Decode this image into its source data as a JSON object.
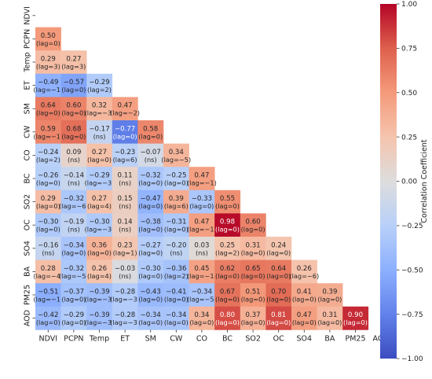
{
  "chart_data": {
    "type": "heatmap",
    "title": "",
    "variables": [
      "NDVI",
      "PCPN",
      "Temp",
      "ET",
      "SM",
      "CW",
      "CO",
      "BC",
      "SO2",
      "OC",
      "SO4",
      "BA",
      "PM25",
      "AOD"
    ],
    "colorbar": {
      "label": "Correlation Coefficient",
      "range": [
        -1.0,
        1.0
      ],
      "ticks": [
        "1.00",
        "0.75",
        "0.50",
        "0.25",
        "0.00",
        "−0.25",
        "−0.50",
        "−0.75",
        "−1.00"
      ],
      "colormap": "coolwarm",
      "low_color": "#3b4cc0",
      "mid_color": "#dddddd",
      "high_color": "#b40426"
    },
    "mask": "upper-triangle-and-diagonal",
    "rows": [
      {
        "label": "NDVI",
        "cells": []
      },
      {
        "label": "PCPN",
        "cells": [
          {
            "v": 0.5,
            "r": "0.50",
            "lag": "(lag=0)"
          }
        ]
      },
      {
        "label": "Temp",
        "cells": [
          {
            "v": 0.29,
            "r": "0.29",
            "lag": "(lag=3)"
          },
          {
            "v": 0.27,
            "r": "0.27",
            "lag": "(lag=3)"
          }
        ]
      },
      {
        "label": "ET",
        "cells": [
          {
            "v": -0.49,
            "r": "−0.49",
            "lag": "(lag=−1)"
          },
          {
            "v": -0.57,
            "r": "−0.57",
            "lag": "(lag=0)"
          },
          {
            "v": -0.29,
            "r": "−0.29",
            "lag": "(lag=2)"
          }
        ]
      },
      {
        "label": "SM",
        "cells": [
          {
            "v": 0.64,
            "r": "0.64",
            "lag": "(lag=0)"
          },
          {
            "v": 0.6,
            "r": "0.60",
            "lag": "(lag=0)"
          },
          {
            "v": 0.32,
            "r": "0.32",
            "lag": "(lag=−3)"
          },
          {
            "v": 0.47,
            "r": "0.47",
            "lag": "(lag=−2)"
          }
        ]
      },
      {
        "label": "CW",
        "cells": [
          {
            "v": 0.59,
            "r": "0.59",
            "lag": "(lag=−1)"
          },
          {
            "v": 0.68,
            "r": "0.68",
            "lag": "(lag=0)"
          },
          {
            "v": -0.17,
            "r": "−0.17",
            "lag": "(ns)"
          },
          {
            "v": -0.77,
            "r": "−0.77",
            "lag": "(lag=0)"
          },
          {
            "v": 0.58,
            "r": "0.58",
            "lag": "(lag=0)"
          }
        ]
      },
      {
        "label": "CO",
        "cells": [
          {
            "v": -0.24,
            "r": "−0.24",
            "lag": "(lag=2)"
          },
          {
            "v": 0.09,
            "r": "0.09",
            "lag": "(ns)"
          },
          {
            "v": 0.27,
            "r": "0.27",
            "lag": "(lag=0)"
          },
          {
            "v": -0.23,
            "r": "−0.23",
            "lag": "(lag=6)"
          },
          {
            "v": -0.07,
            "r": "−0.07",
            "lag": "(ns)"
          },
          {
            "v": 0.34,
            "r": "0.34",
            "lag": "(lag=−5)"
          }
        ]
      },
      {
        "label": "BC",
        "cells": [
          {
            "v": -0.26,
            "r": "−0.26",
            "lag": "(lag=0)"
          },
          {
            "v": -0.14,
            "r": "−0.14",
            "lag": "(ns)"
          },
          {
            "v": -0.29,
            "r": "−0.29",
            "lag": "(lag=−3)"
          },
          {
            "v": 0.11,
            "r": "0.11",
            "lag": "(ns)"
          },
          {
            "v": -0.32,
            "r": "−0.32",
            "lag": "(lag=0)"
          },
          {
            "v": -0.25,
            "r": "−0.25",
            "lag": "(lag=0)"
          },
          {
            "v": 0.47,
            "r": "0.47",
            "lag": "(lag=−1)"
          }
        ]
      },
      {
        "label": "SO2",
        "cells": [
          {
            "v": 0.29,
            "r": "0.29",
            "lag": "(lag=0)"
          },
          {
            "v": -0.32,
            "r": "−0.32",
            "lag": "(lag=−6)"
          },
          {
            "v": 0.27,
            "r": "0.27",
            "lag": "(lag=4)"
          },
          {
            "v": 0.15,
            "r": "0.15",
            "lag": "(ns)"
          },
          {
            "v": -0.47,
            "r": "−0.47",
            "lag": "(lag=0)"
          },
          {
            "v": 0.39,
            "r": "0.39",
            "lag": "(lag=6)"
          },
          {
            "v": -0.33,
            "r": "−0.33",
            "lag": "(lag=0)"
          },
          {
            "v": 0.55,
            "r": "0.55",
            "lag": "(lag=0)"
          }
        ]
      },
      {
        "label": "OC",
        "cells": [
          {
            "v": -0.3,
            "r": "−0.30",
            "lag": "(lag=0)"
          },
          {
            "v": -0.19,
            "r": "−0.19",
            "lag": "(ns)"
          },
          {
            "v": -0.3,
            "r": "−0.30",
            "lag": "(lag=−3)"
          },
          {
            "v": 0.14,
            "r": "0.14",
            "lag": "(ns)"
          },
          {
            "v": -0.38,
            "r": "−0.38",
            "lag": "(lag=0)"
          },
          {
            "v": -0.31,
            "r": "−0.31",
            "lag": "(lag=0)"
          },
          {
            "v": 0.47,
            "r": "0.47",
            "lag": "(lag=−1)"
          },
          {
            "v": 0.98,
            "r": "0.98",
            "lag": "(lag=0)"
          },
          {
            "v": 0.6,
            "r": "0.60",
            "lag": "(lag=0)"
          }
        ]
      },
      {
        "label": "SO4",
        "cells": [
          {
            "v": -0.16,
            "r": "−0.16",
            "lag": "(ns)"
          },
          {
            "v": -0.34,
            "r": "−0.34",
            "lag": "(lag=0)"
          },
          {
            "v": 0.36,
            "r": "0.36",
            "lag": "(lag=0)"
          },
          {
            "v": 0.23,
            "r": "0.23",
            "lag": "(lag=1)"
          },
          {
            "v": -0.27,
            "r": "−0.27",
            "lag": "(lag=0)"
          },
          {
            "v": -0.2,
            "r": "−0.20",
            "lag": "(ns)"
          },
          {
            "v": 0.03,
            "r": "0.03",
            "lag": "(ns)"
          },
          {
            "v": 0.25,
            "r": "0.25",
            "lag": "(lag=2)"
          },
          {
            "v": 0.31,
            "r": "0.31",
            "lag": "(lag=0)"
          },
          {
            "v": 0.24,
            "r": "0.24",
            "lag": "(lag=0)"
          }
        ]
      },
      {
        "label": "BA",
        "cells": [
          {
            "v": 0.28,
            "r": "0.28",
            "lag": "(lag=−4)"
          },
          {
            "v": -0.32,
            "r": "−0.32",
            "lag": "(lag=−5)"
          },
          {
            "v": 0.26,
            "r": "0.26",
            "lag": "(lag=4)"
          },
          {
            "v": -0.03,
            "r": "−0.03",
            "lag": "(ns)"
          },
          {
            "v": -0.3,
            "r": "−0.30",
            "lag": "(lag=0)"
          },
          {
            "v": -0.36,
            "r": "−0.36",
            "lag": "(lag=2)"
          },
          {
            "v": 0.45,
            "r": "0.45",
            "lag": "(lag=−1)"
          },
          {
            "v": 0.62,
            "r": "0.62",
            "lag": "(lag=0)"
          },
          {
            "v": 0.65,
            "r": "0.65",
            "lag": "(lag=0)"
          },
          {
            "v": 0.64,
            "r": "0.64",
            "lag": "(lag=0)"
          },
          {
            "v": 0.26,
            "r": "0.26",
            "lag": "(lag=−6)"
          }
        ]
      },
      {
        "label": "PM25",
        "cells": [
          {
            "v": -0.51,
            "r": "−0.51",
            "lag": "(lag=−1)"
          },
          {
            "v": -0.37,
            "r": "−0.37",
            "lag": "(lag=0)"
          },
          {
            "v": -0.39,
            "r": "−0.39",
            "lag": "(lag=−3)"
          },
          {
            "v": -0.28,
            "r": "−0.28",
            "lag": "(lag=−3)"
          },
          {
            "v": -0.43,
            "r": "−0.43",
            "lag": "(lag=0)"
          },
          {
            "v": -0.41,
            "r": "−0.41",
            "lag": "(lag=0)"
          },
          {
            "v": -0.34,
            "r": "−0.34",
            "lag": "(lag=−5)"
          },
          {
            "v": 0.67,
            "r": "0.67",
            "lag": "(lag=0)"
          },
          {
            "v": 0.51,
            "r": "0.51",
            "lag": "(lag=0)"
          },
          {
            "v": 0.7,
            "r": "0.70",
            "lag": "(lag=0)"
          },
          {
            "v": 0.41,
            "r": "0.41",
            "lag": "(lag=0)"
          },
          {
            "v": 0.39,
            "r": "0.39",
            "lag": "(lag=0)"
          }
        ]
      },
      {
        "label": "AOD",
        "cells": [
          {
            "v": -0.42,
            "r": "−0.42",
            "lag": "(lag=0)"
          },
          {
            "v": -0.29,
            "r": "−0.29",
            "lag": "(lag=0)"
          },
          {
            "v": -0.39,
            "r": "−0.39",
            "lag": "(lag=−3)"
          },
          {
            "v": -0.28,
            "r": "−0.28",
            "lag": "(lag=−3)"
          },
          {
            "v": -0.34,
            "r": "−0.34",
            "lag": "(lag=0)"
          },
          {
            "v": -0.34,
            "r": "−0.34",
            "lag": "(lag=0)"
          },
          {
            "v": 0.34,
            "r": "0.34",
            "lag": "(lag=0)"
          },
          {
            "v": 0.8,
            "r": "0.80",
            "lag": "(lag=0)"
          },
          {
            "v": 0.37,
            "r": "0.37",
            "lag": "(lag=0)"
          },
          {
            "v": 0.81,
            "r": "0.81",
            "lag": "(lag=0)"
          },
          {
            "v": 0.47,
            "r": "0.47",
            "lag": "(lag=0)"
          },
          {
            "v": 0.31,
            "r": "0.31",
            "lag": "(lag=0)"
          },
          {
            "v": 0.9,
            "r": "0.90",
            "lag": "(lag=0)"
          }
        ]
      }
    ]
  }
}
